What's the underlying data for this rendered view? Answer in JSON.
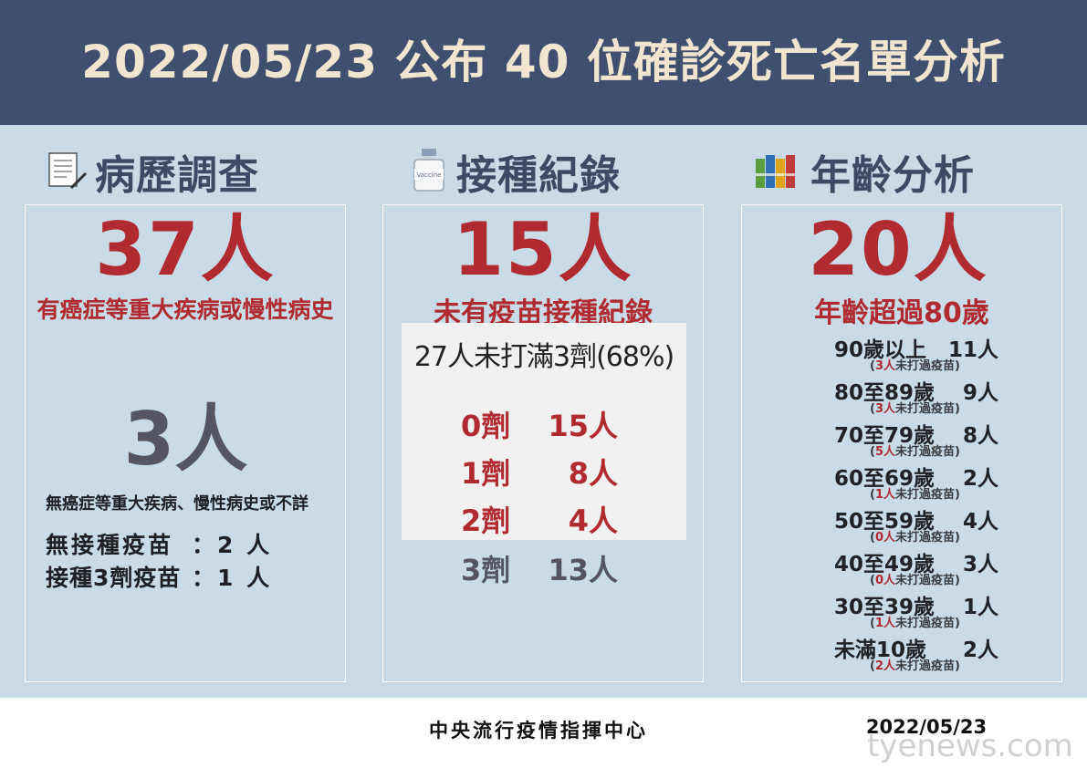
{
  "title": "2022/05/23 公布 40 位確診死亡名單分析",
  "colors": {
    "header_bg": "#3e4f70",
    "title_text": "#f1e5cf",
    "panel_bg": "#c9dbe6",
    "heading_text": "#3d4a66",
    "accent_red": "#b02a2f",
    "gray_text": "#545561"
  },
  "columns": {
    "history": {
      "icon": "document-pen-icon",
      "heading": "病歷調查",
      "main_count": "37人",
      "main_desc": "有癌症等重大疾病或慢性病史",
      "secondary_count": "3人",
      "secondary_desc": "無癌症等重大疾病、慢性病史或不詳",
      "details": [
        {
          "label": "無接種疫苗",
          "value": "：2 人"
        },
        {
          "label": "接種3劑疫苗",
          "value": "：1 人"
        }
      ]
    },
    "vaccination": {
      "icon": "vaccine-bottle-icon",
      "icon_label": "Vaccine",
      "heading": "接種紀錄",
      "main_count": "15人",
      "main_desc": "未有疫苗接種紀錄",
      "summary": "27人未打滿3劑(68%)",
      "doses": [
        {
          "dose": "0劑",
          "count": "15人"
        },
        {
          "dose": "1劑",
          "count": "8人"
        },
        {
          "dose": "2劑",
          "count": "4人"
        },
        {
          "dose": "3劑",
          "count": "13人"
        }
      ]
    },
    "age": {
      "icon": "books-icon",
      "heading": "年齡分析",
      "main_count": "20人",
      "main_desc": "年齡超過80歲",
      "groups": [
        {
          "range": "90歲以上",
          "count": "11人",
          "unvax": "3人",
          "note": "未打過疫苗"
        },
        {
          "range": "80至89歲",
          "count": "9人",
          "unvax": "3人",
          "note": "未打過疫苗"
        },
        {
          "range": "70至79歲",
          "count": "8人",
          "unvax": "5人",
          "note": "未打過疫苗"
        },
        {
          "range": "60至69歲",
          "count": "2人",
          "unvax": "1人",
          "note": "未打過疫苗"
        },
        {
          "range": "50至59歲",
          "count": "4人",
          "unvax": "0人",
          "note": "未打過疫苗"
        },
        {
          "range": "40至49歲",
          "count": "3人",
          "unvax": "0人",
          "note": "未打過疫苗"
        },
        {
          "range": "30至39歲",
          "count": "1人",
          "unvax": "1人",
          "note": "未打過疫苗"
        },
        {
          "range": "未滿10歲",
          "count": "2人",
          "unvax": "2人",
          "note": "未打過疫苗"
        }
      ]
    }
  },
  "footer": {
    "organization": "中央流行疫情指揮中心",
    "date": "2022/05/23"
  },
  "watermark": "tyenews.com"
}
